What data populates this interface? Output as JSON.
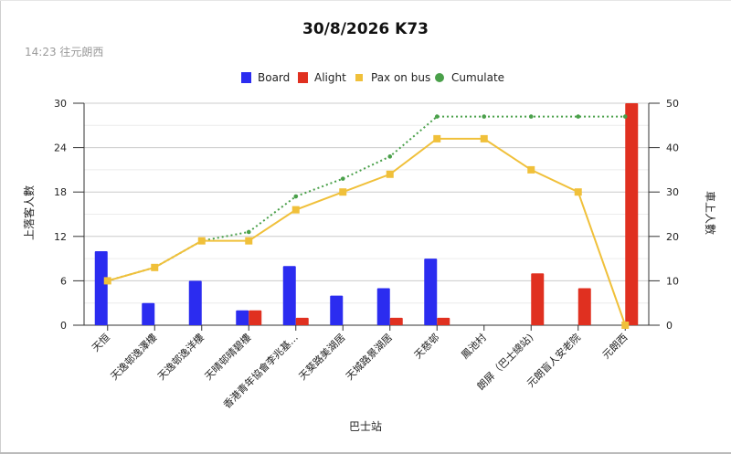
{
  "chart_data": {
    "type": "bar+line",
    "title": "30/8/2026 K73",
    "subtitle": "14:23 往元朗西",
    "xlabel": "巴士站",
    "ylabel_left": "上落客人數",
    "ylabel_right": "車上人數",
    "ylim_left": [
      0,
      30
    ],
    "ylim_right": [
      0,
      50
    ],
    "yticks_left": [
      "0",
      "6",
      "12",
      "18",
      "24",
      "30"
    ],
    "yticks_right": [
      "0",
      "10",
      "20",
      "30",
      "40",
      "50"
    ],
    "grid": true,
    "legend_position": "top",
    "categories": [
      "天恒",
      "天逸邨逸澤樓",
      "天逸邨逸洋樓",
      "天晴邨晴碧樓",
      "香港青年協會李兆基…",
      "天葵路美湖居",
      "天城路景湖居",
      "天慈邨",
      "鳳池村",
      "朗屏（巴士總站)",
      "元朗盲人安老院",
      "元朗西"
    ],
    "series": [
      {
        "name": "Board",
        "type": "bar",
        "axis": "left",
        "color": "#2b2cf0",
        "values": [
          10,
          3,
          6,
          2,
          8,
          4,
          5,
          9,
          0,
          0,
          0,
          0
        ]
      },
      {
        "name": "Alight",
        "type": "bar",
        "axis": "left",
        "color": "#e03020",
        "values": [
          0,
          0,
          0,
          2,
          1,
          0,
          1,
          1,
          0,
          7,
          5,
          30
        ]
      },
      {
        "name": "Pax on bus",
        "type": "line",
        "axis": "right",
        "color": "#f0c03a",
        "values": [
          10,
          13,
          19,
          19,
          26,
          30,
          34,
          42,
          42,
          35,
          30,
          0
        ]
      },
      {
        "name": "Cumulate",
        "type": "line",
        "dotted": true,
        "axis": "right",
        "color": "#4aa04a",
        "values": [
          10,
          13,
          19,
          21,
          29,
          33,
          38,
          47,
          47,
          47,
          47,
          47
        ]
      }
    ]
  }
}
